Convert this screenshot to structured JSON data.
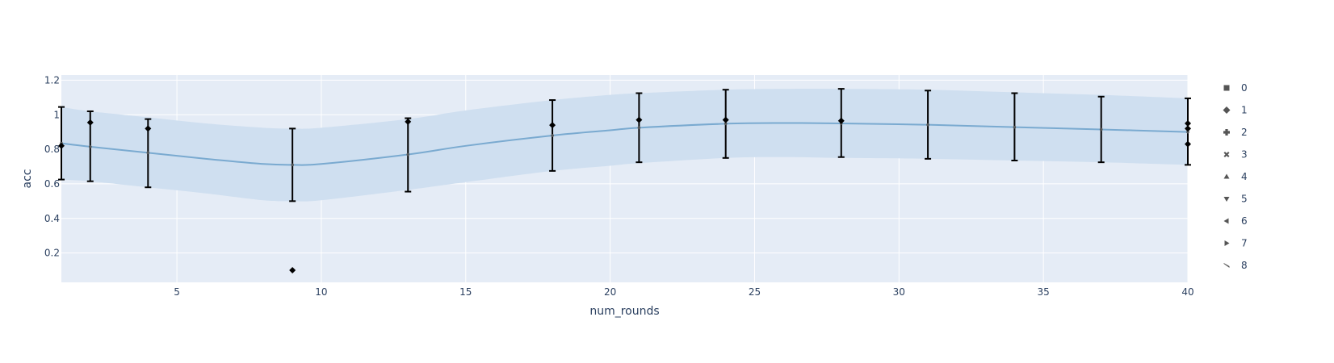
{
  "chart_data": {
    "type": "scatter",
    "title": "",
    "xlabel": "num_rounds",
    "ylabel": "acc",
    "xlim": [
      1,
      40
    ],
    "ylim": [
      0.03,
      1.23
    ],
    "x_ticks": [
      5,
      10,
      15,
      20,
      25,
      30,
      35,
      40
    ],
    "y_ticks": [
      0.2,
      0.4,
      0.6,
      0.8,
      1,
      1.2
    ],
    "y_tick_labels": [
      "0.2",
      "0.4",
      "0.6",
      "0.8",
      "1",
      "1.2"
    ],
    "grid": true,
    "legend_position": "right",
    "colors": {
      "plot_bg": "#e5ecf6",
      "grid": "#ffffff",
      "band": "#cfdff0",
      "mean_line": "#7aaad0",
      "points": "#000000",
      "legend_marker": "#555555",
      "text": "#2a3f5f"
    },
    "legend": [
      {
        "label": "0",
        "symbol": "square"
      },
      {
        "label": "1",
        "symbol": "diamond"
      },
      {
        "label": "2",
        "symbol": "cross"
      },
      {
        "label": "3",
        "symbol": "x"
      },
      {
        "label": "4",
        "symbol": "triangle-up"
      },
      {
        "label": "5",
        "symbol": "triangle-down"
      },
      {
        "label": "6",
        "symbol": "triangle-left"
      },
      {
        "label": "7",
        "symbol": "triangle-right"
      },
      {
        "label": "8",
        "symbol": "triangle-ne"
      }
    ],
    "model_mean": {
      "x": [
        1,
        2,
        4,
        6,
        8,
        9,
        10,
        13,
        15,
        18,
        20,
        21,
        24,
        26,
        28,
        31,
        34,
        37,
        40
      ],
      "y": [
        0.835,
        0.815,
        0.78,
        0.745,
        0.715,
        0.71,
        0.715,
        0.77,
        0.82,
        0.88,
        0.91,
        0.925,
        0.948,
        0.952,
        0.95,
        0.942,
        0.928,
        0.915,
        0.9
      ]
    },
    "model_band": {
      "x": [
        1,
        2,
        4,
        6,
        8,
        9,
        10,
        13,
        15,
        18,
        20,
        21,
        24,
        26,
        28,
        31,
        34,
        37,
        40
      ],
      "upper": [
        1.045,
        1.02,
        0.985,
        0.95,
        0.925,
        0.92,
        0.925,
        0.975,
        1.025,
        1.085,
        1.115,
        1.125,
        1.145,
        1.15,
        1.15,
        1.145,
        1.13,
        1.115,
        1.095
      ],
      "lower": [
        0.625,
        0.615,
        0.58,
        0.545,
        0.505,
        0.5,
        0.505,
        0.565,
        0.61,
        0.675,
        0.705,
        0.72,
        0.75,
        0.755,
        0.75,
        0.745,
        0.735,
        0.725,
        0.71
      ]
    },
    "error_bars": {
      "x": [
        1,
        2,
        4,
        9,
        13,
        18,
        21,
        24,
        28,
        31,
        34,
        37,
        40
      ],
      "y": [
        0.835,
        0.815,
        0.78,
        0.71,
        0.77,
        0.88,
        0.925,
        0.948,
        0.95,
        0.942,
        0.928,
        0.915,
        0.9
      ],
      "upper": [
        1.045,
        1.02,
        0.975,
        0.92,
        0.98,
        1.085,
        1.125,
        1.145,
        1.15,
        1.14,
        1.125,
        1.105,
        1.095
      ],
      "lower": [
        0.625,
        0.615,
        0.58,
        0.5,
        0.555,
        0.675,
        0.725,
        0.75,
        0.755,
        0.745,
        0.735,
        0.725,
        0.71
      ]
    },
    "observations": {
      "x": [
        1,
        2,
        4,
        9,
        13,
        18,
        21,
        24,
        28,
        40,
        40,
        40
      ],
      "y": [
        0.82,
        0.955,
        0.92,
        0.1,
        0.96,
        0.94,
        0.97,
        0.97,
        0.965,
        0.95,
        0.92,
        0.83
      ]
    }
  }
}
